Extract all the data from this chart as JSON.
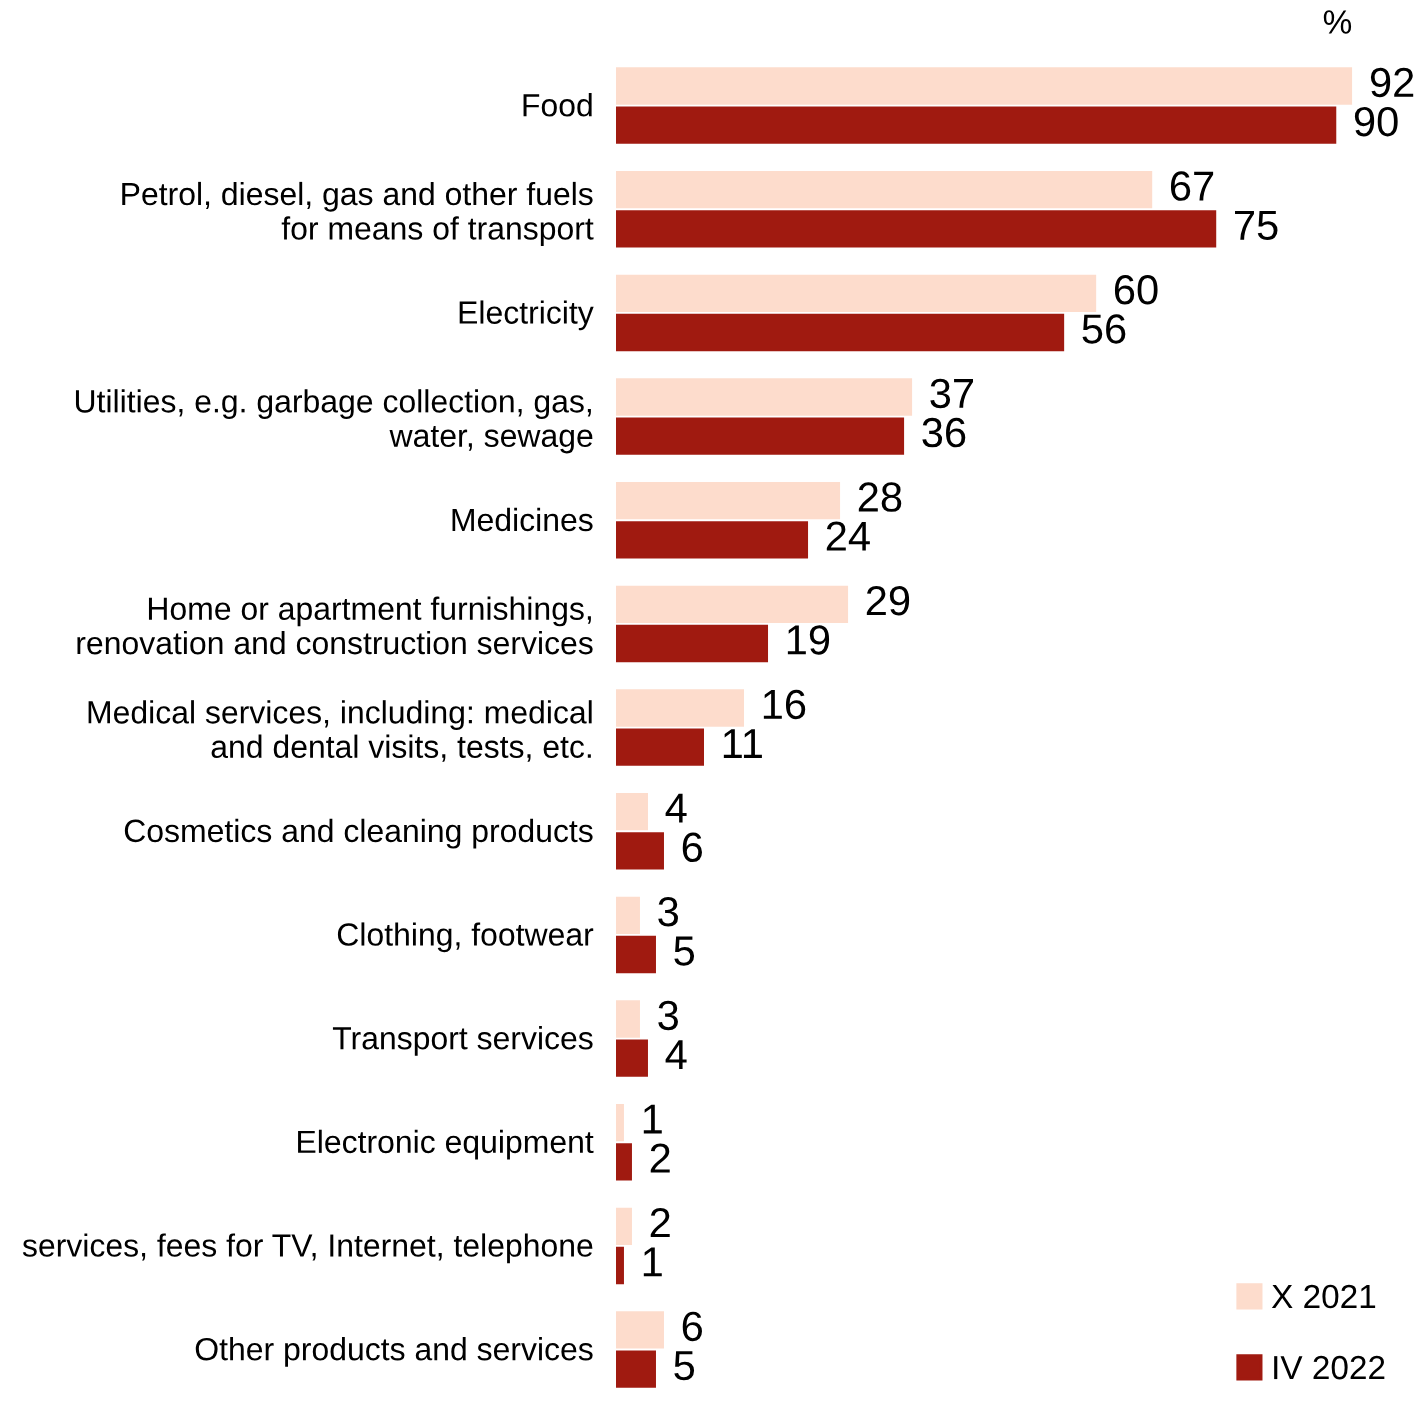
{
  "chart_data": {
    "type": "bar",
    "orientation": "horizontal",
    "categories": [
      "Food",
      "Petrol, diesel, gas and other fuels\nfor means of transport",
      "Electricity",
      "Utilities, e.g. garbage collection, gas,\nwater, sewage",
      "Medicines",
      "Home or apartment furnishings,\nrenovation and construction services",
      "Medical services, including: medical\nand dental visits, tests, etc.",
      "Cosmetics and cleaning products",
      "Clothing, footwear",
      "Transport services",
      "Electronic equipment",
      "services, fees for TV, Internet, telephone",
      "Other products and services"
    ],
    "series": [
      {
        "name": "X 2021",
        "color": "#fddccc",
        "values": [
          92,
          67,
          60,
          37,
          28,
          29,
          16,
          4,
          3,
          3,
          1,
          2,
          6
        ]
      },
      {
        "name": "IV 2022",
        "color": "#a01a10",
        "values": [
          90,
          75,
          56,
          36,
          24,
          19,
          11,
          6,
          5,
          4,
          2,
          1,
          5
        ]
      }
    ],
    "data_labels": true,
    "legend": "bottom right",
    "annotations": [
      "%"
    ]
  }
}
